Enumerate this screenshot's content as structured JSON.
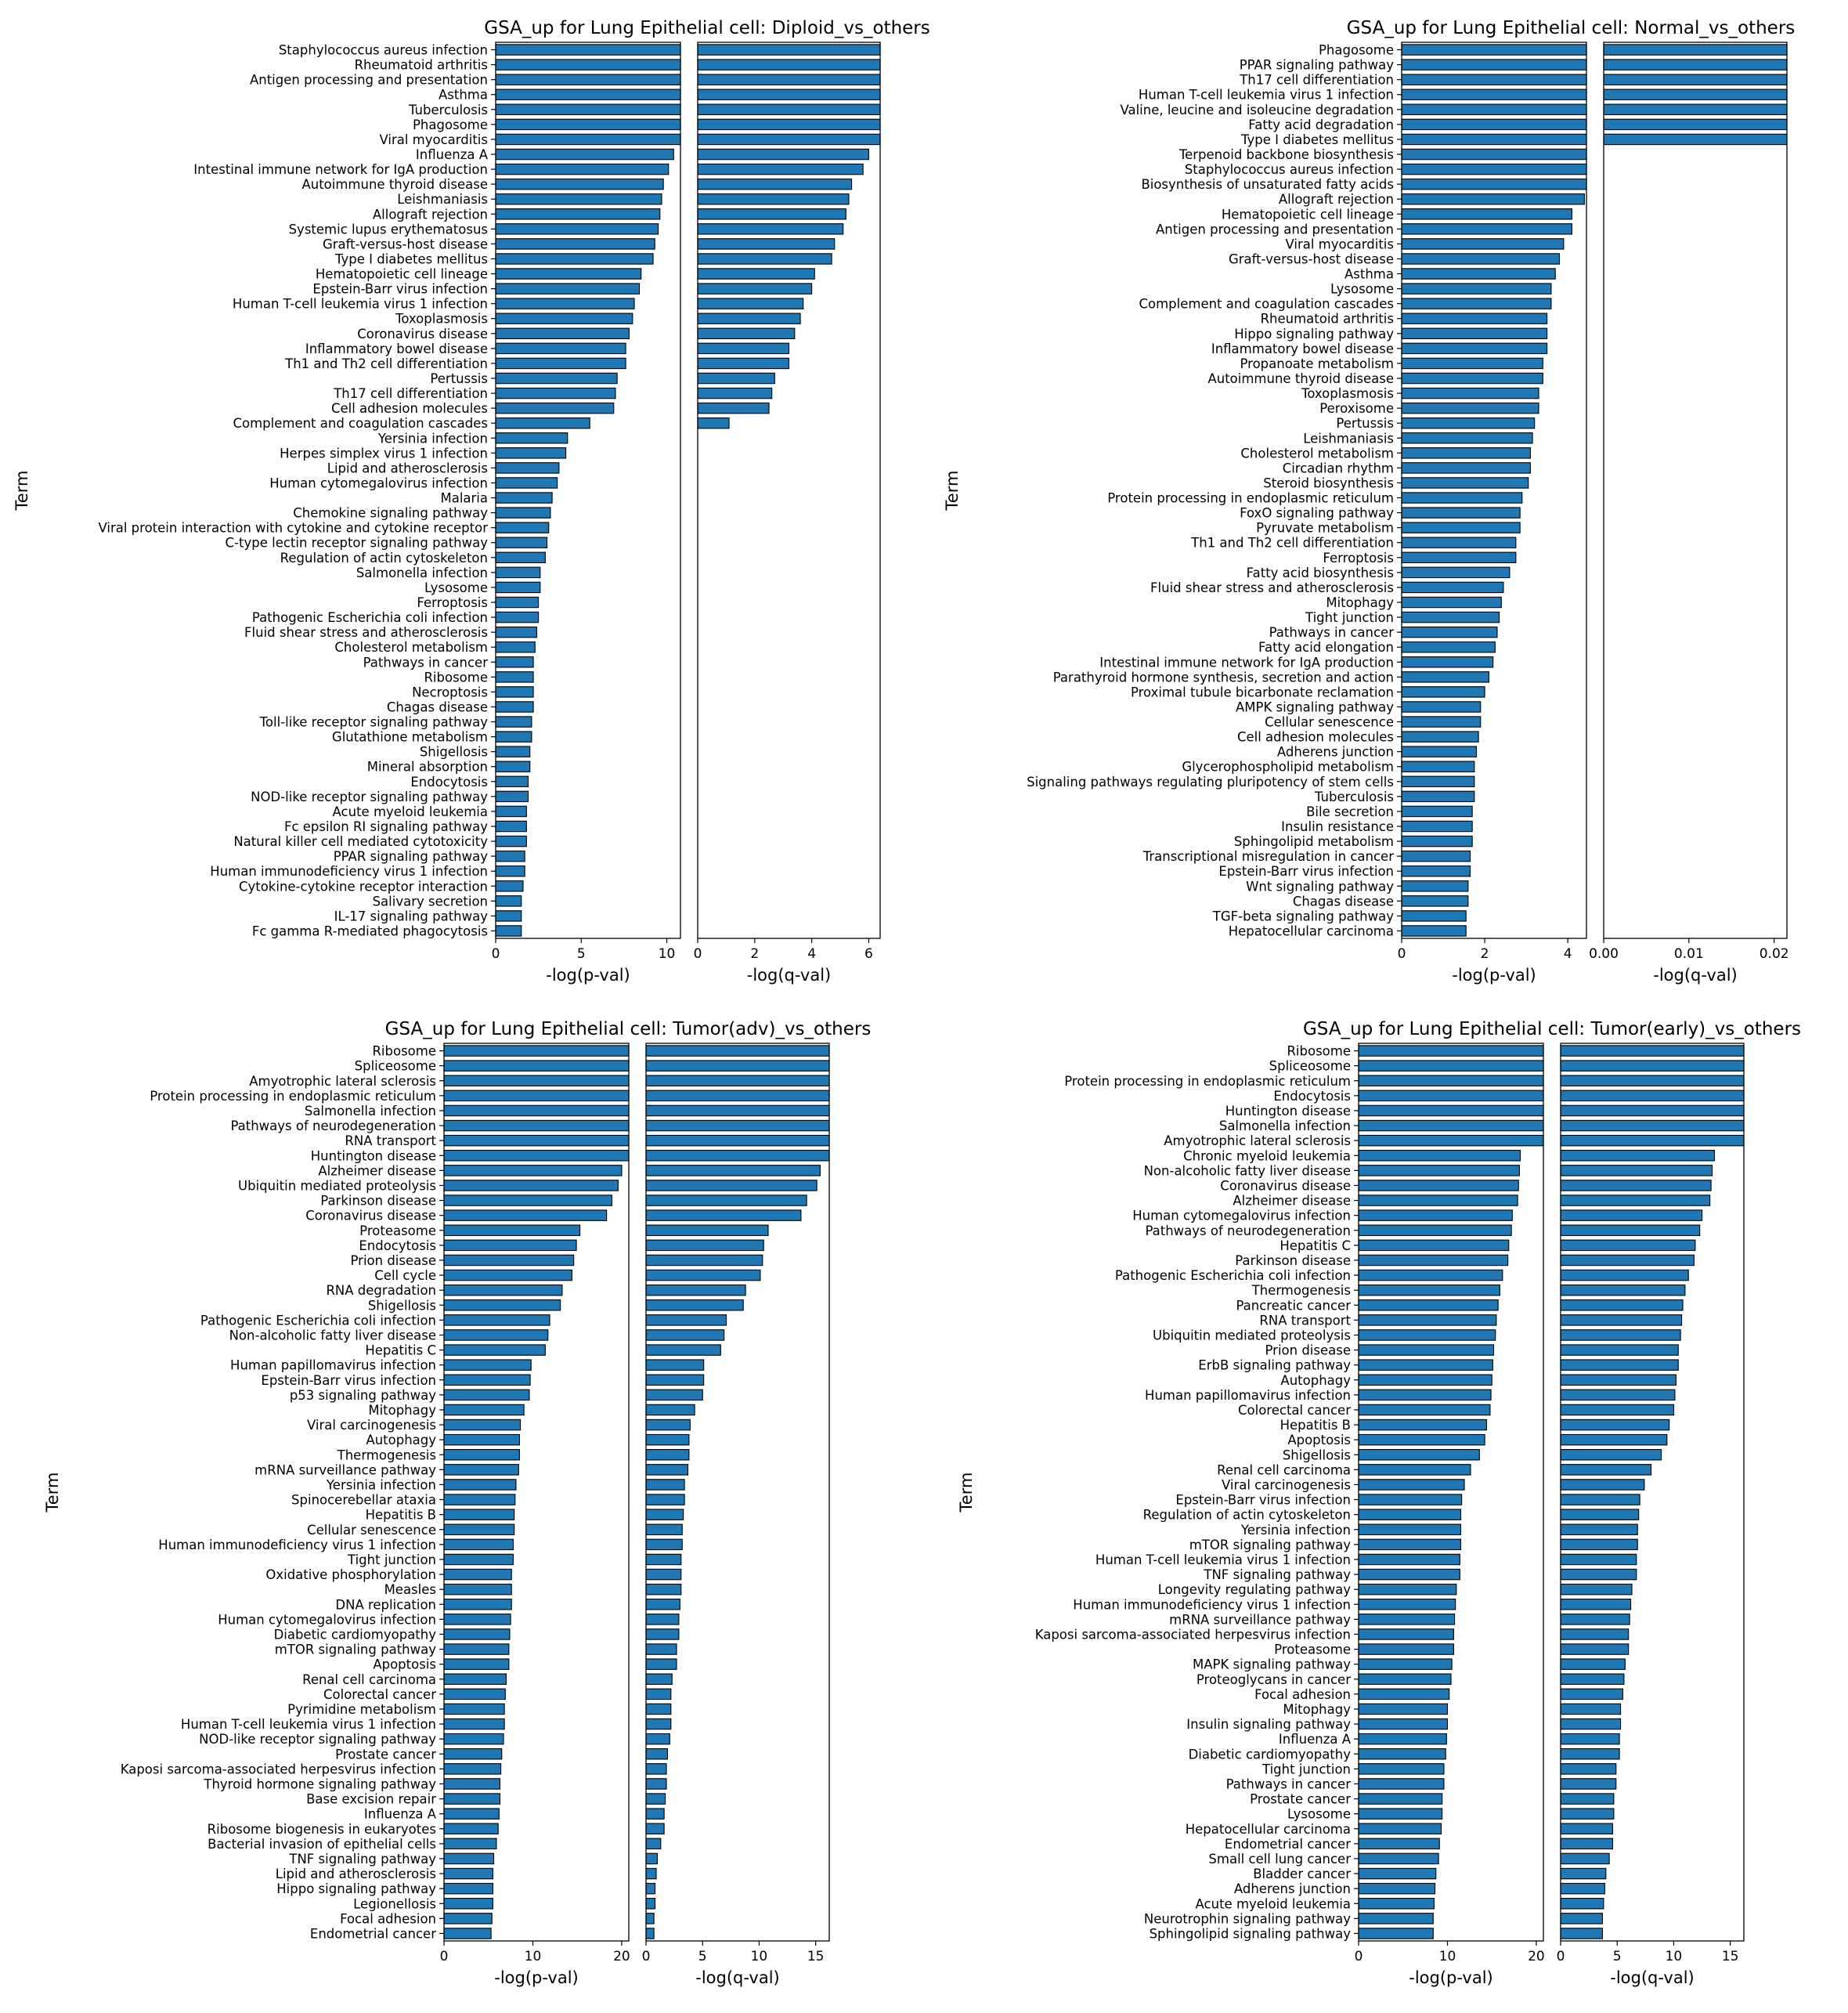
{
  "chart_data": [
    {
      "type": "bar",
      "orientation": "horizontal",
      "title": "GSA_up for Lung Epithelial cell: Diploid_vs_others",
      "ylabel": "Term",
      "categories": [
        "Staphylococcus aureus infection",
        "Rheumatoid arthritis",
        "Antigen processing and presentation",
        "Asthma",
        "Tuberculosis",
        "Phagosome",
        "Viral myocarditis",
        "Influenza A",
        "Intestinal immune network for IgA production",
        "Autoimmune thyroid disease",
        "Leishmaniasis",
        "Allograft rejection",
        "Systemic lupus erythematosus",
        "Graft-versus-host disease",
        "Type I diabetes mellitus",
        "Hematopoietic cell lineage",
        "Epstein-Barr virus infection",
        "Human T-cell leukemia virus 1 infection",
        "Toxoplasmosis",
        "Coronavirus disease",
        "Inflammatory bowel disease",
        "Th1 and Th2 cell differentiation",
        "Pertussis",
        "Th17 cell differentiation",
        "Cell adhesion molecules",
        "Complement and coagulation cascades",
        "Yersinia infection",
        "Herpes simplex virus 1 infection",
        "Lipid and atherosclerosis",
        "Human cytomegalovirus infection",
        "Malaria",
        "Chemokine signaling pathway",
        "Viral protein interaction with cytokine and cytokine receptor",
        "C-type lectin receptor signaling pathway",
        "Regulation of actin cytoskeleton",
        "Salmonella infection",
        "Lysosome",
        "Ferroptosis",
        "Pathogenic Escherichia coli infection",
        "Fluid shear stress and atherosclerosis",
        "Cholesterol metabolism",
        "Pathways in cancer",
        "Ribosome",
        "Necroptosis",
        "Chagas disease",
        "Toll-like receptor signaling pathway",
        "Glutathione metabolism",
        "Shigellosis",
        "Mineral absorption",
        "Endocytosis",
        "NOD-like receptor signaling pathway",
        "Acute myeloid leukemia",
        "Fc epsilon RI signaling pathway",
        "Natural killer cell mediated cytotoxicity",
        "PPAR signaling pathway",
        "Human immunodeficiency virus 1 infection",
        "Cytokine-cytokine receptor interaction",
        "Salivary secretion",
        "IL-17 signaling pathway",
        "Fc gamma R-mediated phagocytosis"
      ],
      "panels": [
        {
          "xlabel": "-log(p-val)",
          "xlim": [
            0,
            10.8
          ],
          "ticks": [
            0,
            5,
            10
          ],
          "values": [
            10.8,
            10.8,
            10.8,
            10.8,
            10.8,
            10.8,
            10.8,
            10.4,
            10.1,
            9.8,
            9.7,
            9.6,
            9.5,
            9.3,
            9.2,
            8.5,
            8.4,
            8.1,
            8.0,
            7.8,
            7.6,
            7.6,
            7.1,
            7.0,
            6.9,
            5.5,
            4.2,
            4.1,
            3.7,
            3.6,
            3.3,
            3.2,
            3.1,
            3.0,
            2.9,
            2.6,
            2.6,
            2.5,
            2.5,
            2.4,
            2.3,
            2.2,
            2.2,
            2.2,
            2.2,
            2.1,
            2.1,
            2.0,
            2.0,
            1.9,
            1.9,
            1.8,
            1.8,
            1.8,
            1.7,
            1.7,
            1.6,
            1.5,
            1.5,
            1.5
          ]
        },
        {
          "xlabel": "-log(q-val)",
          "xlim": [
            0,
            6.4
          ],
          "ticks": [
            0,
            2,
            4,
            6
          ],
          "values": [
            6.4,
            6.4,
            6.4,
            6.4,
            6.4,
            6.4,
            6.4,
            6.0,
            5.8,
            5.4,
            5.3,
            5.2,
            5.1,
            4.8,
            4.7,
            4.1,
            4.0,
            3.7,
            3.6,
            3.4,
            3.2,
            3.2,
            2.7,
            2.6,
            2.5,
            1.1
          ]
        }
      ]
    },
    {
      "type": "bar",
      "orientation": "horizontal",
      "title": "GSA_up for Lung Epithelial cell: Normal_vs_others",
      "ylabel": "Term",
      "categories": [
        "Phagosome",
        "PPAR signaling pathway",
        "Th17 cell differentiation",
        "Human T-cell leukemia virus 1 infection",
        "Valine, leucine and isoleucine degradation",
        "Fatty acid degradation",
        "Type I diabetes mellitus",
        "Terpenoid backbone biosynthesis",
        "Staphylococcus aureus infection",
        "Biosynthesis of unsaturated fatty acids",
        "Allograft rejection",
        "Hematopoietic cell lineage",
        "Antigen processing and presentation",
        "Viral myocarditis",
        "Graft-versus-host disease",
        "Asthma",
        "Lysosome",
        "Complement and coagulation cascades",
        "Rheumatoid arthritis",
        "Hippo signaling pathway",
        "Inflammatory bowel disease",
        "Propanoate metabolism",
        "Autoimmune thyroid disease",
        "Toxoplasmosis",
        "Peroxisome",
        "Pertussis",
        "Leishmaniasis",
        "Cholesterol metabolism",
        "Circadian rhythm",
        "Steroid biosynthesis",
        "Protein processing in endoplasmic reticulum",
        "FoxO signaling pathway",
        "Pyruvate metabolism",
        "Th1 and Th2 cell differentiation",
        "Ferroptosis",
        "Fatty acid biosynthesis",
        "Fluid shear stress and atherosclerosis",
        "Mitophagy",
        "Tight junction",
        "Pathways in cancer",
        "Fatty acid elongation",
        "Intestinal immune network for IgA production",
        "Parathyroid hormone synthesis, secretion and action",
        "Proximal tubule bicarbonate reclamation",
        "AMPK signaling pathway",
        "Cellular senescence",
        "Cell adhesion molecules",
        "Adherens junction",
        "Glycerophospholipid metabolism",
        "Signaling pathways regulating pluripotency of stem cells",
        "Tuberculosis",
        "Bile secretion",
        "Insulin resistance",
        "Sphingolipid metabolism",
        "Transcriptional misregulation in cancer",
        "Epstein-Barr virus infection",
        "Wnt signaling pathway",
        "Chagas disease",
        "TGF-beta signaling pathway",
        "Hepatocellular carcinoma"
      ],
      "panels": [
        {
          "xlabel": "-log(p-val)",
          "xlim": [
            0,
            4.45
          ],
          "ticks": [
            0,
            2,
            4
          ],
          "values": [
            4.45,
            4.45,
            4.45,
            4.45,
            4.45,
            4.45,
            4.45,
            4.45,
            4.45,
            4.45,
            4.4,
            4.1,
            4.1,
            3.9,
            3.8,
            3.7,
            3.6,
            3.6,
            3.5,
            3.5,
            3.5,
            3.4,
            3.4,
            3.3,
            3.3,
            3.2,
            3.15,
            3.1,
            3.1,
            3.05,
            2.9,
            2.85,
            2.85,
            2.75,
            2.75,
            2.6,
            2.45,
            2.4,
            2.35,
            2.3,
            2.25,
            2.2,
            2.1,
            2.0,
            1.9,
            1.9,
            1.85,
            1.8,
            1.75,
            1.75,
            1.75,
            1.7,
            1.7,
            1.7,
            1.65,
            1.65,
            1.6,
            1.6,
            1.55,
            1.55
          ]
        },
        {
          "xlabel": "-log(q-val)",
          "xlim": [
            0,
            0.0215
          ],
          "ticks": [
            "0.00",
            "0.01",
            "0.02"
          ],
          "values": [
            0.0215,
            0.0215,
            0.0215,
            0.0215,
            0.0215,
            0.0215,
            0.0215
          ]
        }
      ]
    },
    {
      "type": "bar",
      "orientation": "horizontal",
      "title": "GSA_up for Lung Epithelial cell: Tumor(adv)_vs_others",
      "ylabel": "Term",
      "categories": [
        "Ribosome",
        "Spliceosome",
        "Amyotrophic lateral sclerosis",
        "Protein processing in endoplasmic reticulum",
        "Salmonella infection",
        "Pathways of neurodegeneration",
        "RNA transport",
        "Huntington disease",
        "Alzheimer disease",
        "Ubiquitin mediated proteolysis",
        "Parkinson disease",
        "Coronavirus disease",
        "Proteasome",
        "Endocytosis",
        "Prion disease",
        "Cell cycle",
        "RNA degradation",
        "Shigellosis",
        "Pathogenic Escherichia coli infection",
        "Non-alcoholic fatty liver disease",
        "Hepatitis C",
        "Human papillomavirus infection",
        "Epstein-Barr virus infection",
        "p53 signaling pathway",
        "Mitophagy",
        "Viral carcinogenesis",
        "Autophagy",
        "Thermogenesis",
        "mRNA surveillance pathway",
        "Yersinia infection",
        "Spinocerebellar ataxia",
        "Hepatitis B",
        "Cellular senescence",
        "Human immunodeficiency virus 1 infection",
        "Tight junction",
        "Oxidative phosphorylation",
        "Measles",
        "DNA replication",
        "Human cytomegalovirus infection",
        "Diabetic cardiomyopathy",
        "mTOR signaling pathway",
        "Apoptosis",
        "Renal cell carcinoma",
        "Colorectal cancer",
        "Pyrimidine metabolism",
        "Human T-cell leukemia virus 1 infection",
        "NOD-like receptor signaling pathway",
        "Prostate cancer",
        "Kaposi sarcoma-associated herpesvirus infection",
        "Thyroid hormone signaling pathway",
        "Base excision repair",
        "Influenza A",
        "Ribosome biogenesis in eukaryotes",
        "Bacterial invasion of epithelial cells",
        "TNF signaling pathway",
        "Lipid and atherosclerosis",
        "Hippo signaling pathway",
        "Legionellosis",
        "Focal adhesion",
        "Endometrial cancer"
      ],
      "panels": [
        {
          "xlabel": "-log(p-val)",
          "xlim": [
            0,
            20.8
          ],
          "ticks": [
            0,
            10,
            20
          ],
          "values": [
            20.8,
            20.8,
            20.8,
            20.8,
            20.8,
            20.8,
            20.8,
            20.8,
            20.0,
            19.6,
            18.9,
            18.3,
            15.3,
            14.9,
            14.6,
            14.4,
            13.3,
            13.1,
            11.9,
            11.7,
            11.4,
            9.8,
            9.7,
            9.6,
            9.0,
            8.6,
            8.5,
            8.5,
            8.4,
            8.1,
            8.0,
            7.9,
            7.9,
            7.8,
            7.8,
            7.6,
            7.6,
            7.6,
            7.5,
            7.4,
            7.3,
            7.3,
            7.0,
            6.9,
            6.8,
            6.8,
            6.7,
            6.5,
            6.4,
            6.3,
            6.3,
            6.2,
            6.1,
            5.9,
            5.6,
            5.5,
            5.5,
            5.5,
            5.4,
            5.3
          ]
        },
        {
          "xlabel": "-log(q-val)",
          "xlim": [
            0,
            16.2
          ],
          "ticks": [
            0,
            5,
            10,
            15
          ],
          "values": [
            16.2,
            16.2,
            16.2,
            16.2,
            16.2,
            16.2,
            16.2,
            16.2,
            15.4,
            15.1,
            14.2,
            13.7,
            10.8,
            10.4,
            10.3,
            10.1,
            8.8,
            8.6,
            7.1,
            6.9,
            6.6,
            5.1,
            5.1,
            5.0,
            4.3,
            3.9,
            3.8,
            3.8,
            3.7,
            3.4,
            3.4,
            3.3,
            3.2,
            3.2,
            3.1,
            3.1,
            3.1,
            3.0,
            2.9,
            2.9,
            2.7,
            2.7,
            2.3,
            2.2,
            2.2,
            2.2,
            2.1,
            1.9,
            1.8,
            1.8,
            1.7,
            1.6,
            1.6,
            1.3,
            1.0,
            0.9,
            0.8,
            0.8,
            0.7,
            0.7
          ]
        }
      ]
    },
    {
      "type": "bar",
      "orientation": "horizontal",
      "title": "GSA_up for Lung Epithelial cell: Tumor(early)_vs_others",
      "ylabel": "Term",
      "categories": [
        "Ribosome",
        "Spliceosome",
        "Protein processing in endoplasmic reticulum",
        "Endocytosis",
        "Huntington disease",
        "Salmonella infection",
        "Amyotrophic lateral sclerosis",
        "Chronic myeloid leukemia",
        "Non-alcoholic fatty liver disease",
        "Coronavirus disease",
        "Alzheimer disease",
        "Human cytomegalovirus infection",
        "Pathways of neurodegeneration",
        "Hepatitis C",
        "Parkinson disease",
        "Pathogenic Escherichia coli infection",
        "Thermogenesis",
        "Pancreatic cancer",
        "RNA transport",
        "Ubiquitin mediated proteolysis",
        "Prion disease",
        "ErbB signaling pathway",
        "Autophagy",
        "Human papillomavirus infection",
        "Colorectal cancer",
        "Hepatitis B",
        "Apoptosis",
        "Shigellosis",
        "Renal cell carcinoma",
        "Viral carcinogenesis",
        "Epstein-Barr virus infection",
        "Regulation of actin cytoskeleton",
        "Yersinia infection",
        "mTOR signaling pathway",
        "Human T-cell leukemia virus 1 infection",
        "TNF signaling pathway",
        "Longevity regulating pathway",
        "Human immunodeficiency virus 1 infection",
        "mRNA surveillance pathway",
        "Kaposi sarcoma-associated herpesvirus infection",
        "Proteasome",
        "MAPK signaling pathway",
        "Proteoglycans in cancer",
        "Focal adhesion",
        "Mitophagy",
        "Insulin signaling pathway",
        "Influenza A",
        "Diabetic cardiomyopathy",
        "Tight junction",
        "Pathways in cancer",
        "Prostate cancer",
        "Lysosome",
        "Hepatocellular carcinoma",
        "Endometrial cancer",
        "Small cell lung cancer",
        "Bladder cancer",
        "Adherens junction",
        "Acute myeloid leukemia",
        "Neurotrophin signaling pathway",
        "Sphingolipid signaling pathway"
      ],
      "panels": [
        {
          "xlabel": "-log(p-val)",
          "xlim": [
            0,
            20.8
          ],
          "ticks": [
            0,
            10,
            20
          ],
          "values": [
            20.8,
            20.8,
            20.8,
            20.8,
            20.8,
            20.8,
            20.8,
            18.2,
            18.1,
            18.0,
            17.9,
            17.3,
            17.2,
            16.9,
            16.8,
            16.2,
            15.9,
            15.7,
            15.5,
            15.4,
            15.2,
            15.1,
            15.0,
            14.9,
            14.8,
            14.4,
            14.2,
            13.6,
            12.6,
            11.9,
            11.6,
            11.5,
            11.5,
            11.5,
            11.4,
            11.4,
            11.0,
            10.9,
            10.8,
            10.7,
            10.7,
            10.5,
            10.4,
            10.2,
            10.0,
            10.0,
            9.9,
            9.8,
            9.6,
            9.6,
            9.4,
            9.4,
            9.3,
            9.1,
            9.0,
            8.7,
            8.6,
            8.5,
            8.4,
            8.4
          ]
        },
        {
          "xlabel": "-log(q-val)",
          "xlim": [
            0,
            16.2
          ],
          "ticks": [
            0,
            5,
            10,
            15
          ],
          "values": [
            16.2,
            16.2,
            16.2,
            16.2,
            16.2,
            16.2,
            16.2,
            13.6,
            13.4,
            13.3,
            13.2,
            12.5,
            12.3,
            11.9,
            11.8,
            11.3,
            11.0,
            10.8,
            10.7,
            10.6,
            10.4,
            10.4,
            10.2,
            10.1,
            10.0,
            9.6,
            9.4,
            8.9,
            8.0,
            7.4,
            7.0,
            6.9,
            6.8,
            6.8,
            6.7,
            6.7,
            6.3,
            6.2,
            6.1,
            6.0,
            6.0,
            5.7,
            5.6,
            5.5,
            5.3,
            5.3,
            5.2,
            5.2,
            4.9,
            4.9,
            4.7,
            4.7,
            4.6,
            4.6,
            4.3,
            4.0,
            3.9,
            3.8,
            3.7,
            3.7
          ]
        }
      ]
    }
  ]
}
